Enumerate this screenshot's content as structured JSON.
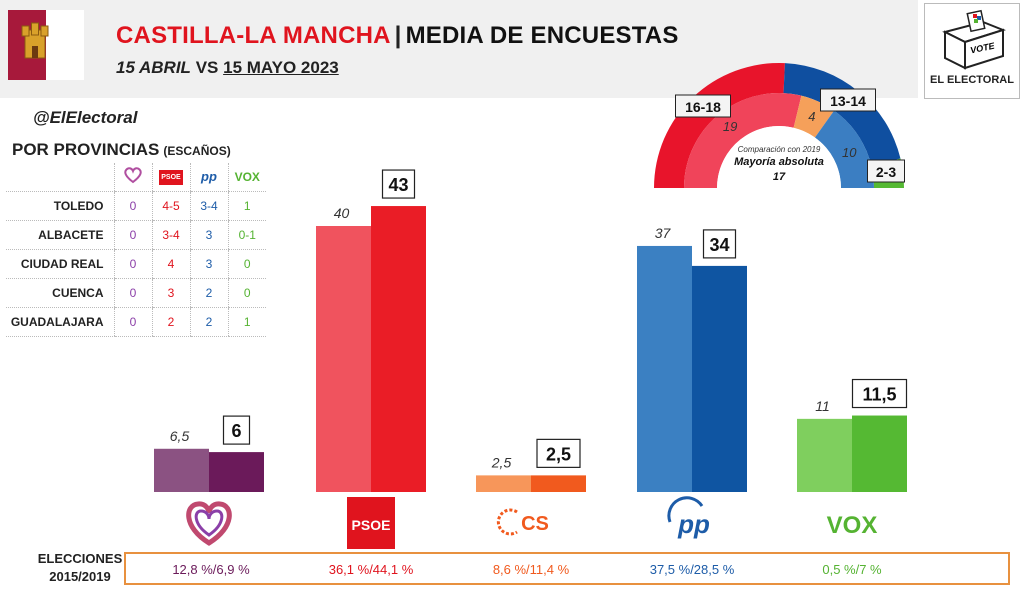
{
  "header": {
    "title_red": "CASTILLA-LA MANCHA",
    "title_sep": "|",
    "title_rest": "MEDIA DE ENCUESTAS",
    "subtitle_a": "15 ABRIL",
    "subtitle_vs": "VS",
    "subtitle_b": "15 MAYO 2023"
  },
  "logo": {
    "vote": "VOTE",
    "brand": "EL ELECTORAL"
  },
  "handle": "@ElElectoral",
  "provinces": {
    "title": "POR PROVINCIAS",
    "subtitle": "(ESCAÑOS)",
    "party_logos": [
      "♡",
      "PSOE",
      "pp",
      "VOX"
    ],
    "rows": [
      {
        "name": "TOLEDO",
        "values": [
          "0",
          "4-5",
          "3-4",
          "1"
        ]
      },
      {
        "name": "ALBACETE",
        "values": [
          "0",
          "3-4",
          "3",
          "0-1"
        ]
      },
      {
        "name": "CIUDAD REAL",
        "values": [
          "0",
          "4",
          "3",
          "0"
        ]
      },
      {
        "name": "CUENCA",
        "values": [
          "0",
          "3",
          "2",
          "0"
        ]
      },
      {
        "name": "GUADALAJARA",
        "values": [
          "0",
          "2",
          "2",
          "1"
        ]
      }
    ]
  },
  "colors": {
    "podemos": [
      "#8b5282",
      "#6b1a5a"
    ],
    "psoe": [
      "#f0535e",
      "#ea1d26"
    ],
    "cs": [
      "#f7965a",
      "#f15a1e"
    ],
    "pp": [
      "#3b80c2",
      "#0f55a2"
    ],
    "vox": [
      "#7fcf5e",
      "#55b933"
    ]
  },
  "chart_data": [
    {
      "type": "bar",
      "categories": [
        "Podemos",
        "PSOE",
        "Cs",
        "PP",
        "VOX"
      ],
      "series": [
        {
          "name": "15 ABRIL",
          "values": [
            6.5,
            40,
            2.5,
            37,
            11
          ]
        },
        {
          "name": "15 MAYO 2023",
          "values": [
            6,
            43,
            2.5,
            34,
            11.5
          ]
        }
      ],
      "labels_abril": [
        "6,5",
        "40",
        "2,5",
        "37",
        "11"
      ],
      "labels_mayo": [
        "6",
        "43",
        "2,5",
        "34",
        "11,5"
      ],
      "party_logos": [
        "♡",
        "PSOE",
        "CS",
        "pp",
        "VOX"
      ]
    },
    {
      "type": "pie",
      "subtype": "half-donut",
      "outer": [
        {
          "label": "16-18",
          "value": 17,
          "color": "#e8142b"
        },
        {
          "label": "13-14",
          "value": 13.5,
          "color": "#0f4fa0"
        },
        {
          "label": "2-3",
          "value": 2.5,
          "color": "#55b933"
        }
      ],
      "inner": [
        {
          "label": "19",
          "value": 19,
          "color": "#f0445a"
        },
        {
          "label": "4",
          "value": 4,
          "color": "#f5a05a"
        },
        {
          "label": "10",
          "value": 10,
          "color": "#3b7ec2"
        }
      ],
      "center_small": "Comparación con 2019",
      "center_title": "Mayoría absoluta",
      "center_value": "17"
    }
  ],
  "elections": {
    "label_line1": "ELECCIONES",
    "label_line2": "2015/2019",
    "values": [
      "12,8 %/6,9 %",
      "36,1 %/44,1 %",
      "8,6 %/11,4 %",
      "37,5 %/28,5 %",
      "0,5 %/7 %"
    ]
  }
}
